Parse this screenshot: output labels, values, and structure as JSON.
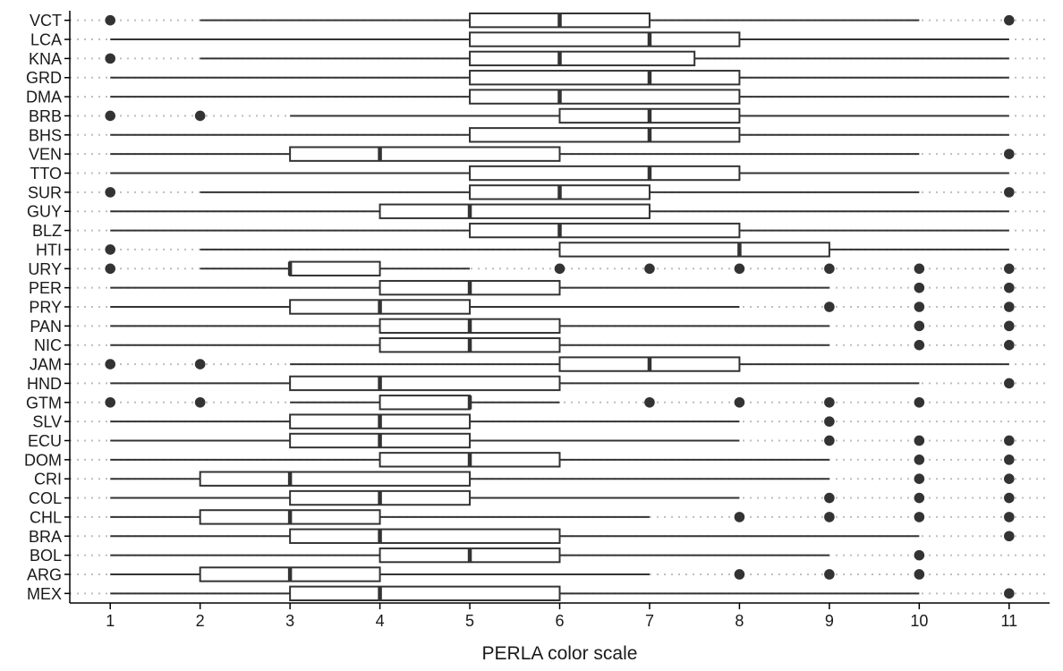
{
  "chart_data": {
    "type": "boxplot",
    "orientation": "horizontal",
    "xlabel": "PERLA color scale",
    "ylabel": "",
    "xlim": [
      0.55,
      11.45
    ],
    "xticks": [
      1,
      2,
      3,
      4,
      5,
      6,
      7,
      8,
      9,
      10,
      11
    ],
    "grid": "dotted horizontal lines per category",
    "box_color": "#333333",
    "outlier_color": "#333333",
    "categories": [
      "VCT",
      "LCA",
      "KNA",
      "GRD",
      "DMA",
      "BRB",
      "BHS",
      "VEN",
      "TTO",
      "SUR",
      "GUY",
      "BLZ",
      "HTI",
      "URY",
      "PER",
      "PRY",
      "PAN",
      "NIC",
      "JAM",
      "HND",
      "GTM",
      "SLV",
      "ECU",
      "DOM",
      "CRI",
      "COL",
      "CHL",
      "BRA",
      "BOL",
      "ARG",
      "MEX"
    ],
    "boxes": [
      {
        "label": "VCT",
        "whisker_low": 2,
        "q1": 5,
        "median": 6,
        "q3": 7,
        "whisker_high": 10,
        "outliers": [
          1,
          11
        ]
      },
      {
        "label": "LCA",
        "whisker_low": 1,
        "q1": 5,
        "median": 7,
        "q3": 8,
        "whisker_high": 11,
        "outliers": []
      },
      {
        "label": "KNA",
        "whisker_low": 2,
        "q1": 5,
        "median": 6,
        "q3": 7.5,
        "whisker_high": 11,
        "outliers": [
          1
        ]
      },
      {
        "label": "GRD",
        "whisker_low": 1,
        "q1": 5,
        "median": 7,
        "q3": 8,
        "whisker_high": 11,
        "outliers": []
      },
      {
        "label": "DMA",
        "whisker_low": 1,
        "q1": 5,
        "median": 6,
        "q3": 8,
        "whisker_high": 11,
        "outliers": []
      },
      {
        "label": "BRB",
        "whisker_low": 3,
        "q1": 6,
        "median": 7,
        "q3": 8,
        "whisker_high": 11,
        "outliers": [
          1,
          2
        ]
      },
      {
        "label": "BHS",
        "whisker_low": 1,
        "q1": 5,
        "median": 7,
        "q3": 8,
        "whisker_high": 11,
        "outliers": []
      },
      {
        "label": "VEN",
        "whisker_low": 1,
        "q1": 3,
        "median": 4,
        "q3": 6,
        "whisker_high": 10,
        "outliers": [
          11
        ]
      },
      {
        "label": "TTO",
        "whisker_low": 1,
        "q1": 5,
        "median": 7,
        "q3": 8,
        "whisker_high": 11,
        "outliers": []
      },
      {
        "label": "SUR",
        "whisker_low": 2,
        "q1": 5,
        "median": 6,
        "q3": 7,
        "whisker_high": 10,
        "outliers": [
          1,
          11
        ]
      },
      {
        "label": "GUY",
        "whisker_low": 1,
        "q1": 4,
        "median": 5,
        "q3": 7,
        "whisker_high": 11,
        "outliers": []
      },
      {
        "label": "BLZ",
        "whisker_low": 1,
        "q1": 5,
        "median": 6,
        "q3": 8,
        "whisker_high": 11,
        "outliers": []
      },
      {
        "label": "HTI",
        "whisker_low": 2,
        "q1": 6,
        "median": 8,
        "q3": 9,
        "whisker_high": 11,
        "outliers": [
          1
        ]
      },
      {
        "label": "URY",
        "whisker_low": 2,
        "q1": 3,
        "median": 3,
        "q3": 4,
        "whisker_high": 5,
        "outliers": [
          1,
          6,
          7,
          8,
          9,
          10,
          11
        ]
      },
      {
        "label": "PER",
        "whisker_low": 1,
        "q1": 4,
        "median": 5,
        "q3": 6,
        "whisker_high": 9,
        "outliers": [
          10,
          11
        ]
      },
      {
        "label": "PRY",
        "whisker_low": 1,
        "q1": 3,
        "median": 4,
        "q3": 5,
        "whisker_high": 8,
        "outliers": [
          9,
          10,
          11
        ]
      },
      {
        "label": "PAN",
        "whisker_low": 1,
        "q1": 4,
        "median": 5,
        "q3": 6,
        "whisker_high": 9,
        "outliers": [
          10,
          11
        ]
      },
      {
        "label": "NIC",
        "whisker_low": 1,
        "q1": 4,
        "median": 5,
        "q3": 6,
        "whisker_high": 9,
        "outliers": [
          10,
          11
        ]
      },
      {
        "label": "JAM",
        "whisker_low": 3,
        "q1": 6,
        "median": 7,
        "q3": 8,
        "whisker_high": 11,
        "outliers": [
          1,
          2
        ]
      },
      {
        "label": "HND",
        "whisker_low": 1,
        "q1": 3,
        "median": 4,
        "q3": 6,
        "whisker_high": 10,
        "outliers": [
          11
        ]
      },
      {
        "label": "GTM",
        "whisker_low": 3,
        "q1": 4,
        "median": 5,
        "q3": 5,
        "whisker_high": 6,
        "outliers": [
          1,
          2,
          7,
          8,
          9,
          10
        ]
      },
      {
        "label": "SLV",
        "whisker_low": 1,
        "q1": 3,
        "median": 4,
        "q3": 5,
        "whisker_high": 8,
        "outliers": [
          9
        ]
      },
      {
        "label": "ECU",
        "whisker_low": 1,
        "q1": 3,
        "median": 4,
        "q3": 5,
        "whisker_high": 8,
        "outliers": [
          9,
          10,
          11
        ]
      },
      {
        "label": "DOM",
        "whisker_low": 1,
        "q1": 4,
        "median": 5,
        "q3": 6,
        "whisker_high": 9,
        "outliers": [
          10,
          11
        ]
      },
      {
        "label": "CRI",
        "whisker_low": 1,
        "q1": 2,
        "median": 3,
        "q3": 5,
        "whisker_high": 9,
        "outliers": [
          10,
          11
        ]
      },
      {
        "label": "COL",
        "whisker_low": 1,
        "q1": 3,
        "median": 4,
        "q3": 5,
        "whisker_high": 8,
        "outliers": [
          9,
          10,
          11
        ]
      },
      {
        "label": "CHL",
        "whisker_low": 1,
        "q1": 2,
        "median": 3,
        "q3": 4,
        "whisker_high": 7,
        "outliers": [
          8,
          9,
          10,
          11
        ]
      },
      {
        "label": "BRA",
        "whisker_low": 1,
        "q1": 3,
        "median": 4,
        "q3": 6,
        "whisker_high": 10,
        "outliers": [
          11
        ]
      },
      {
        "label": "BOL",
        "whisker_low": 1,
        "q1": 4,
        "median": 5,
        "q3": 6,
        "whisker_high": 9,
        "outliers": [
          10
        ]
      },
      {
        "label": "ARG",
        "whisker_low": 1,
        "q1": 2,
        "median": 3,
        "q3": 4,
        "whisker_high": 7,
        "outliers": [
          8,
          9,
          10
        ]
      },
      {
        "label": "MEX",
        "whisker_low": 1,
        "q1": 3,
        "median": 4,
        "q3": 6,
        "whisker_high": 10,
        "outliers": [
          11
        ]
      }
    ]
  }
}
